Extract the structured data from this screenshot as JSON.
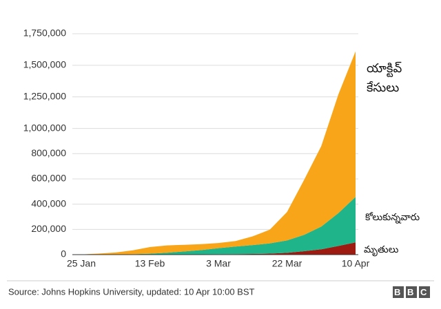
{
  "chart_data": {
    "type": "stacked-area",
    "categories": [
      "25 Jan",
      null,
      null,
      null,
      "13 Feb",
      null,
      null,
      null,
      "3 Mar",
      null,
      null,
      null,
      "22 Mar",
      null,
      null,
      null,
      "10 Apr"
    ],
    "series": [
      {
        "name": "మృతులు",
        "color": "#9e1b12",
        "values": [
          40,
          170,
          360,
          800,
          1370,
          1870,
          2400,
          2800,
          3100,
          3800,
          5400,
          8000,
          14600,
          27000,
          42000,
          69000,
          97000
        ]
      },
      {
        "name": "కోలుకున్నవారు",
        "color": "#1fb489",
        "values": [
          40,
          140,
          480,
          2600,
          6000,
          13000,
          23000,
          33000,
          48000,
          60000,
          70000,
          81000,
          98000,
          130000,
          180000,
          260000,
          360000
        ]
      },
      {
        "name": "యాక్టివ్ కేసులు",
        "color": "#f9a51a",
        "values": [
          1320,
          7690,
          16160,
          30600,
          52630,
          58130,
          52600,
          47200,
          40900,
          44200,
          69600,
          109000,
          224400,
          436000,
          638000,
          941000,
          1153000
        ]
      }
    ],
    "ylim": [
      0,
      1750000
    ],
    "yticks": [
      0,
      {
        "value": 200000,
        "label": "200,000"
      },
      {
        "value": 400000,
        "label": "400,000"
      },
      {
        "value": 600000,
        "label": "600,000"
      },
      {
        "value": 800000,
        "label": "800,000"
      },
      {
        "value": 1000000,
        "label": "1,000,000"
      },
      {
        "value": 1250000,
        "label": "1,250,000"
      },
      {
        "value": 1500000,
        "label": "1,500,000"
      },
      {
        "value": 1750000,
        "label": "1,750,000"
      }
    ],
    "grid": true,
    "source": "Source: Johns Hopkins University, updated: 10 Apr 10:00 BST",
    "logo": "BBC"
  }
}
